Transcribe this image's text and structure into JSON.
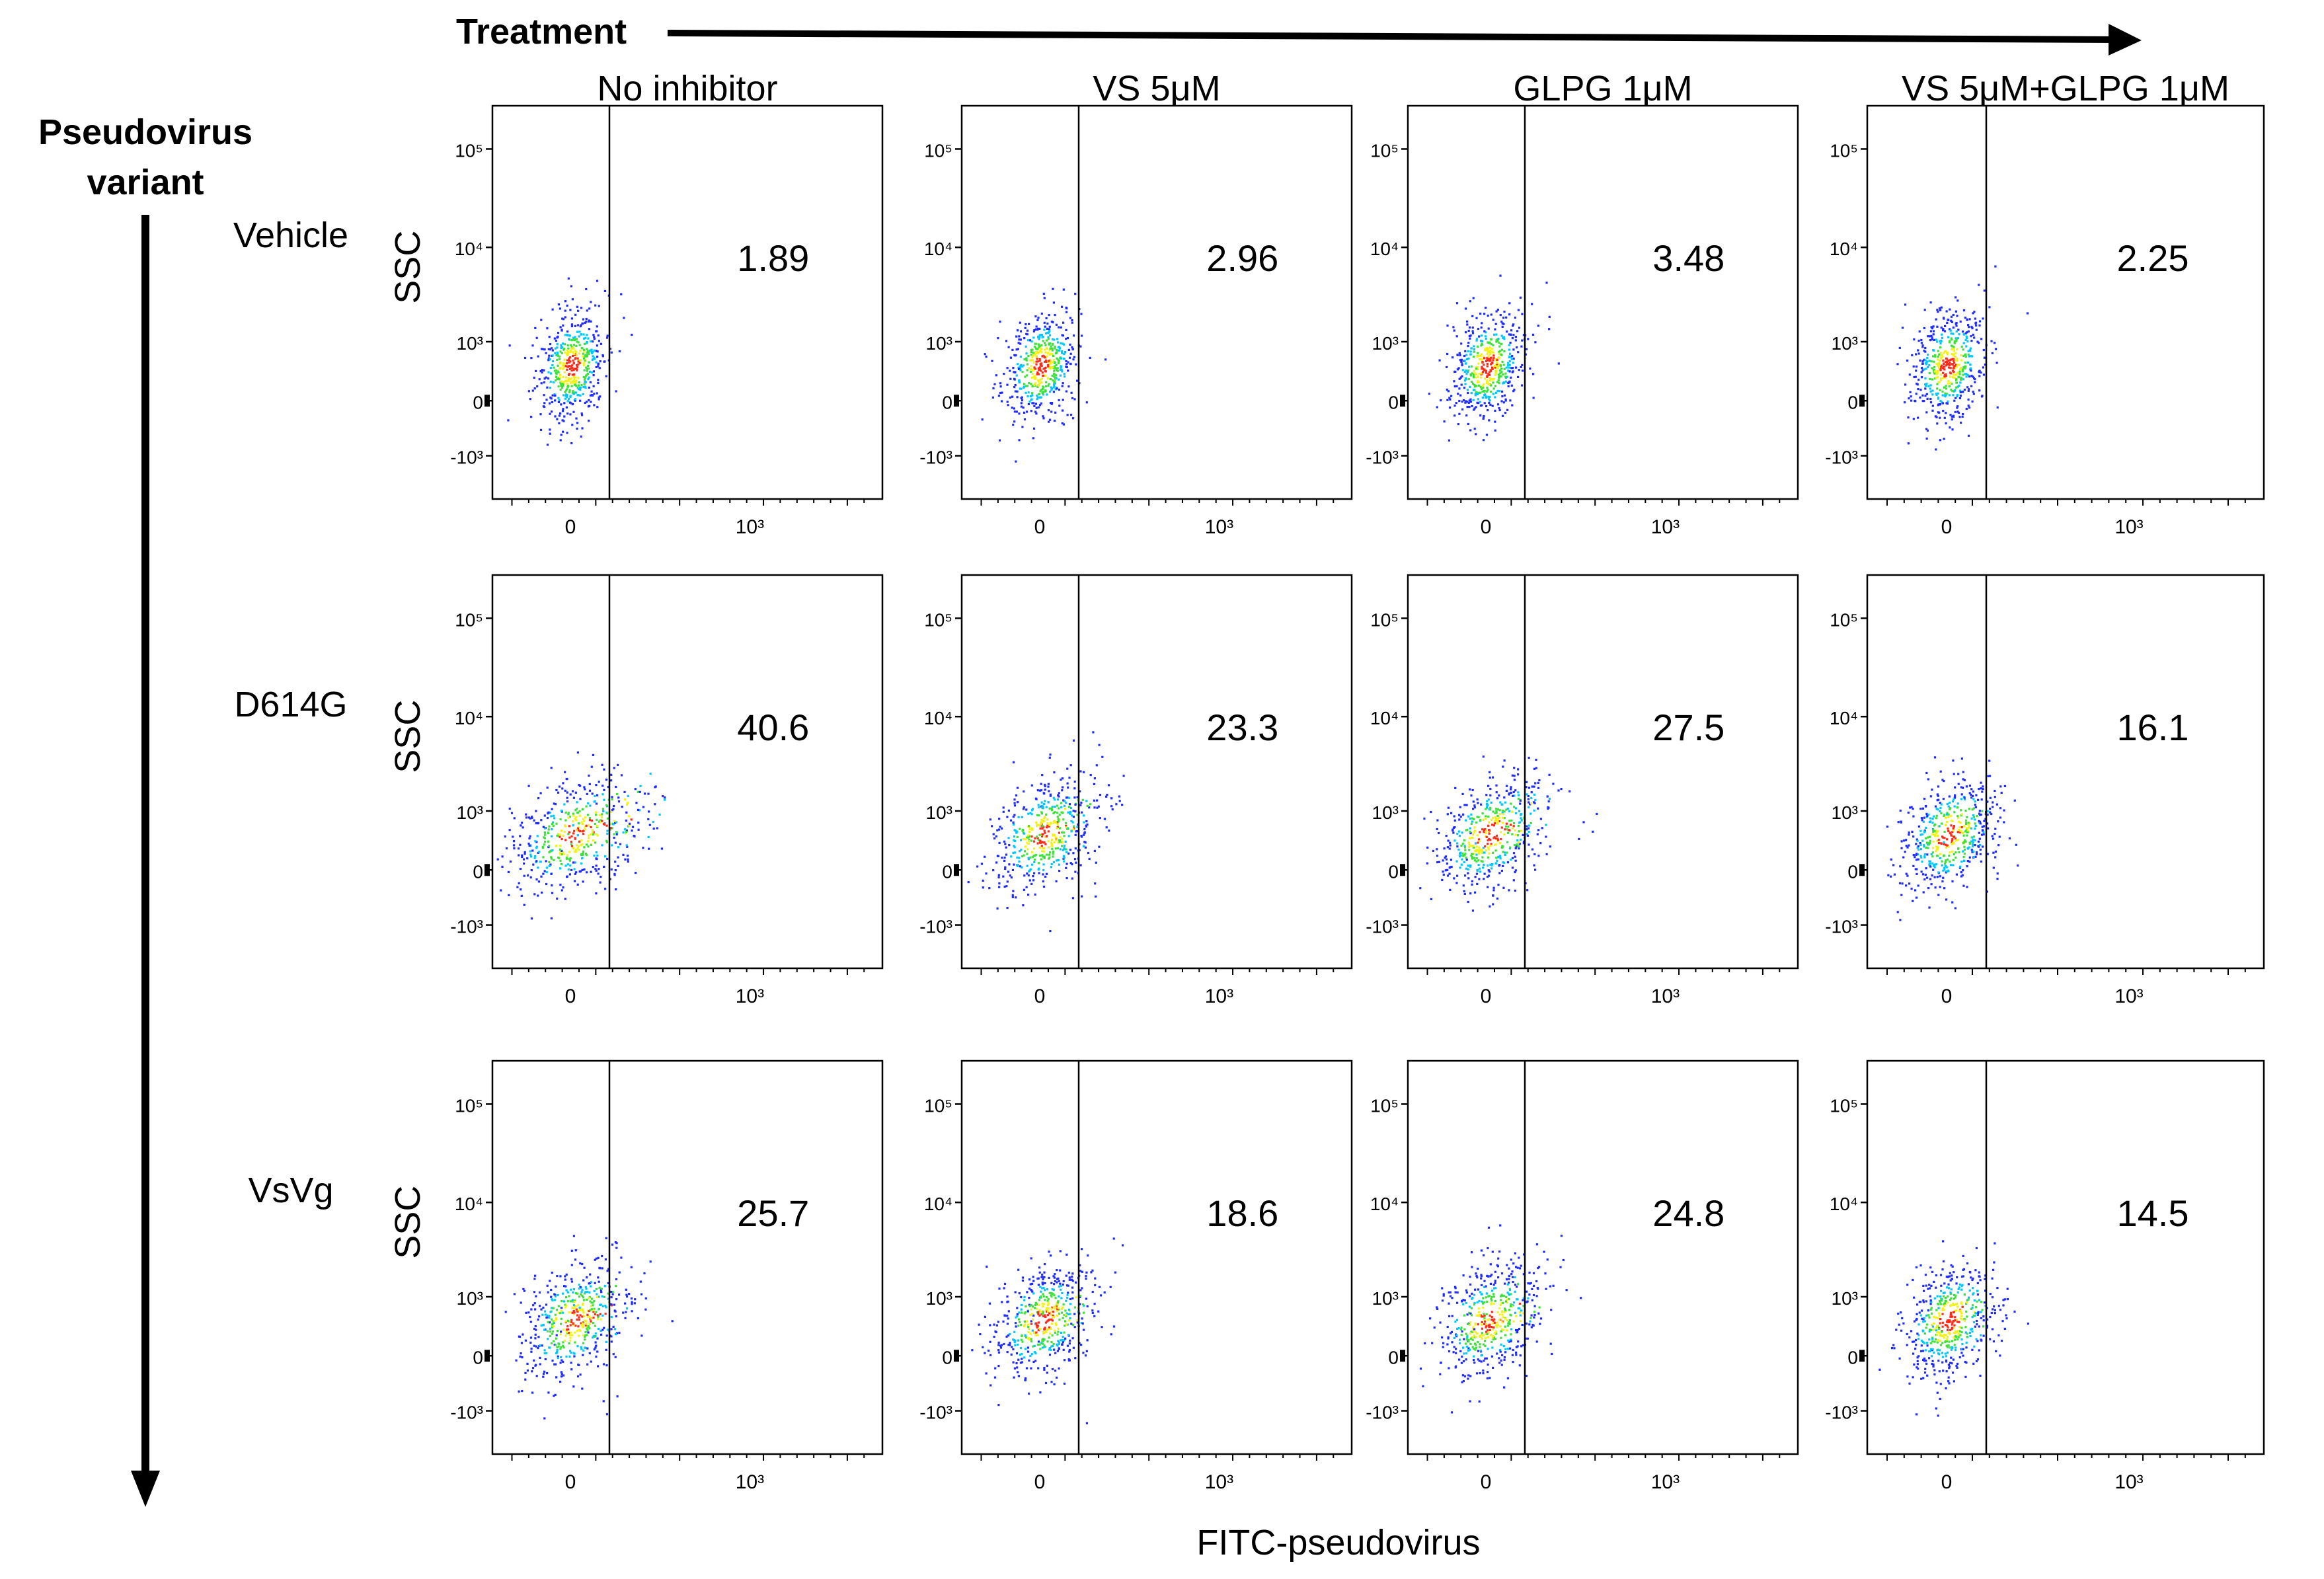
{
  "figure": {
    "treatment_label": "Treatment",
    "variant_label_line1": "Pseudovirus",
    "variant_label_line2": "variant",
    "x_axis_label": "FITC-pseudovirus",
    "y_axis_label": "SSC",
    "colors": {
      "background": "#ffffff",
      "frame": "#000000",
      "density_low": "#1f2bff",
      "density_mid_low": "#00c8ff",
      "density_mid": "#3ee03a",
      "density_mid_high": "#f2f21a",
      "density_high": "#ff2a1a"
    }
  },
  "chart_data": {
    "type": "scatter",
    "title": "",
    "subtype": "flow-cytometry density dot plot grid",
    "xlabel": "FITC-pseudovirus",
    "ylabel": "SSC",
    "x_ticks": [
      "0",
      "10³"
    ],
    "y_ticks": [
      "10⁵",
      "10⁴",
      "10³",
      "0",
      "-10³"
    ],
    "columns": [
      "No inhibitor",
      "VS 5μM",
      "GLPG 1μM",
      "VS 5μM+GLPG 1μM"
    ],
    "rows": [
      "Vehicle",
      "D614G",
      "VsVg"
    ],
    "values_unit": "% FITC-positive cells (right of gate)",
    "values": [
      [
        1.89,
        2.96,
        3.48,
        2.25
      ],
      [
        40.6,
        23.3,
        27.5,
        16.1
      ],
      [
        25.7,
        18.6,
        24.8,
        14.5
      ]
    ],
    "value_labels": [
      [
        "1.89",
        "2.96",
        "3.48",
        "2.25"
      ],
      [
        "40.6",
        "23.3",
        "27.5",
        "16.1"
      ],
      [
        "25.7",
        "18.6",
        "24.8",
        "14.5"
      ]
    ],
    "grid": false
  }
}
